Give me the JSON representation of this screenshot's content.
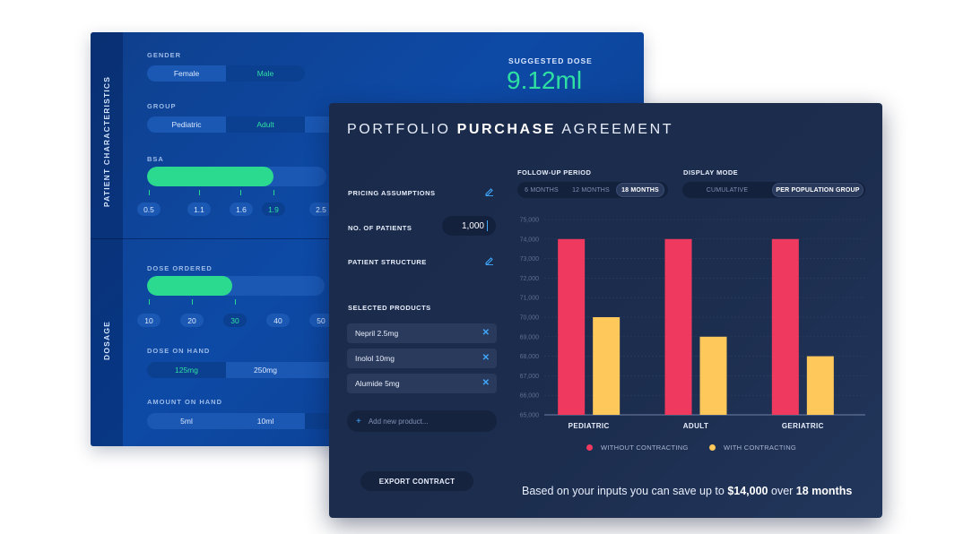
{
  "back_panel": {
    "sidebar": {
      "patient_section": "PATIENT CHARACTERISTICS",
      "dosage_section": "DOSAGE"
    },
    "gender": {
      "label": "GENDER",
      "options": [
        "Female",
        "Male"
      ],
      "selected": "Male"
    },
    "group": {
      "label": "GROUP",
      "options": [
        "Pediatric",
        "Adult"
      ],
      "selected": "Adult"
    },
    "bsa": {
      "label": "BSA",
      "fill_fraction": 0.71,
      "ticks": [
        "0.5",
        "1.1",
        "1.6",
        "1.9",
        "2.5"
      ],
      "selected": "1.9"
    },
    "dose_ordered": {
      "label": "DOSE ORDERED",
      "fill_fraction": 0.48,
      "ticks": [
        "10",
        "20",
        "30",
        "40",
        "50"
      ],
      "selected": "30"
    },
    "dose_on_hand": {
      "label": "DOSE ON HAND",
      "options": [
        "125mg",
        "250mg"
      ],
      "selected": "125mg"
    },
    "amount_on_hand": {
      "label": "AMOUNT ON HAND",
      "options": [
        "5ml",
        "10ml"
      ],
      "selected": ""
    },
    "suggested_dose": {
      "label": "SUGGESTED DOSE",
      "value": "9.12ml"
    },
    "colors": {
      "bg": "#0d4aa6",
      "accent": "#2bd98f"
    }
  },
  "front_panel": {
    "title_light_1": "PORTFOLIO ",
    "title_bold": "PURCHASE",
    "title_light_2": " AGREEMENT",
    "pricing_assumptions": {
      "label": "PRICING ASSUMPTIONS",
      "icon": "edit-icon"
    },
    "no_of_patients": {
      "label": "NO. OF PATIENTS",
      "value": "1,000"
    },
    "patient_structure": {
      "label": "PATIENT STRUCTURE",
      "icon": "edit-icon"
    },
    "selected_products": {
      "label": "SELECTED PRODUCTS",
      "items": [
        "Nepril 2.5mg",
        "Inolol 10mg",
        "Alumide 5mg"
      ],
      "remove_icon": "close-icon",
      "add_placeholder": "Add new product..."
    },
    "export_button": "EXPORT CONTRACT",
    "follow_up": {
      "label": "FOLLOW-UP PERIOD",
      "options": [
        "6 MONTHS",
        "12 MONTHS",
        "18 MONTHS"
      ],
      "selected": "18 MONTHS"
    },
    "display_mode": {
      "label": "DISPLAY MODE",
      "options": [
        "CUMULATIVE",
        "PER POPULATION GROUP"
      ],
      "selected": "PER POPULATION GROUP"
    },
    "savings": {
      "prefix": "Based on your inputs you can save up to ",
      "amount": "$14,000",
      "middle": " over ",
      "period": "18 months"
    },
    "colors": {
      "bg": "#1c2d4e",
      "accent": "#3fa9ff"
    }
  },
  "chart_data": {
    "type": "bar",
    "categories": [
      "PEDIATRIC",
      "ADULT",
      "GERIATRIC"
    ],
    "series": [
      {
        "name": "WITHOUT CONTRACTING",
        "color": "#f0395e",
        "values": [
          74000,
          74000,
          74000
        ]
      },
      {
        "name": "WITH CONTRACTING",
        "color": "#ffc85a",
        "values": [
          70000,
          69000,
          68000
        ]
      }
    ],
    "yticks": [
      "75,000",
      "74,000",
      "73,000",
      "72,000",
      "71,000",
      "70,000",
      "69,000",
      "68,000",
      "67,000",
      "66,000",
      "65,000"
    ],
    "ylim": [
      65000,
      75000
    ],
    "grid": true,
    "legend": "bottom"
  }
}
